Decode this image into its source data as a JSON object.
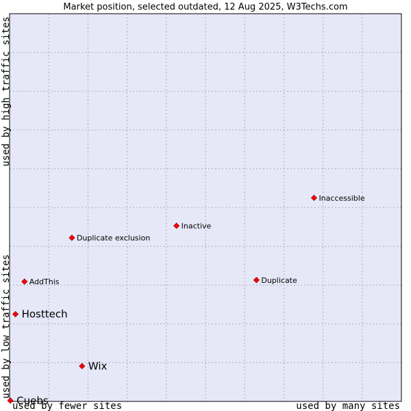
{
  "chart_data": {
    "type": "scatter",
    "title": "Market position, selected outdated, 12 Aug 2025, W3Techs.com",
    "xlabel_left": "used by fewer sites",
    "xlabel_right": "used by many sites",
    "ylabel_bottom": "used by low traffic sites",
    "ylabel_top": "used by high traffic sites",
    "xlim": [
      0,
      100
    ],
    "ylim": [
      0,
      100
    ],
    "grid": true,
    "colors": {
      "plot_bg": "#e6e8f8",
      "grid": "#a9acc4",
      "marker": "#ff0000",
      "marker_edge": "#990000"
    },
    "points": [
      {
        "name": "Cuebs",
        "x": 0.2,
        "y": 0.2,
        "size": "large"
      },
      {
        "name": "Wix",
        "x": 18.5,
        "y": 9.1,
        "size": "large"
      },
      {
        "name": "Hosttech",
        "x": 1.5,
        "y": 22.5,
        "size": "large"
      },
      {
        "name": "AddThis",
        "x": 3.8,
        "y": 30.9,
        "size": "small"
      },
      {
        "name": "Duplicate exclusion",
        "x": 15.9,
        "y": 42.2,
        "size": "small"
      },
      {
        "name": "Inactive",
        "x": 42.6,
        "y": 45.3,
        "size": "small"
      },
      {
        "name": "Duplicate",
        "x": 63.0,
        "y": 31.3,
        "size": "small"
      },
      {
        "name": "Inaccessible",
        "x": 77.7,
        "y": 52.5,
        "size": "small"
      }
    ]
  }
}
